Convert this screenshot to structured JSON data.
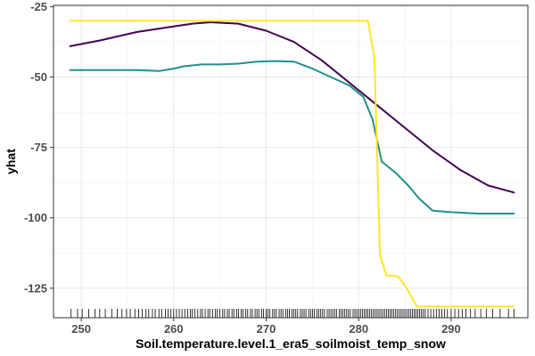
{
  "chart_data": {
    "type": "line",
    "xlabel": "Soil.temperature.level.1_era5_soilmoist_temp_snow",
    "ylabel": "yhat",
    "xlim": [
      247.0,
      298.3
    ],
    "ylim": [
      -135.5,
      -24.5
    ],
    "x_ticks": [
      250,
      260,
      270,
      280,
      290
    ],
    "y_ticks": [
      -125,
      -100,
      -75,
      -50,
      -25
    ],
    "x_tick_labels": [
      "250",
      "260",
      "270",
      "280",
      "290"
    ],
    "y_tick_labels": [
      "-125",
      "-100",
      "-75",
      "-50",
      "-25"
    ],
    "grid": true,
    "legend": "none",
    "series": [
      {
        "color": "#440154",
        "x": [
          248.8,
          252,
          256,
          259,
          262,
          264,
          267,
          270,
          273,
          276,
          279,
          282,
          285,
          288,
          291,
          294,
          296.8
        ],
        "y": [
          -39,
          -37,
          -34,
          -32.5,
          -31,
          -30.5,
          -31,
          -33.5,
          -37.5,
          -44,
          -52,
          -60,
          -68,
          -76,
          -83,
          -88.5,
          -91
        ]
      },
      {
        "color": "#21908c",
        "x": [
          248.8,
          252,
          256,
          258.5,
          260,
          261,
          263,
          265,
          267,
          269,
          271,
          273,
          275,
          277,
          279,
          280.5,
          281.5,
          282.5,
          284,
          285.5,
          286.5,
          288,
          290,
          293,
          296.8
        ],
        "y": [
          -47.5,
          -47.5,
          -47.5,
          -47.8,
          -47,
          -46.2,
          -45.5,
          -45.5,
          -45.2,
          -44.5,
          -44.3,
          -44.5,
          -47,
          -50,
          -53,
          -57,
          -65,
          -80,
          -84,
          -89,
          -93,
          -97.5,
          -98,
          -98.5,
          -98.5
        ]
      },
      {
        "color": "#fde725",
        "x": [
          248.8,
          252,
          256,
          260,
          264,
          268,
          272,
          276,
          280,
          281.0,
          281.7,
          282.3,
          283.0,
          283.7,
          284.3,
          285.0,
          285.7,
          286.3,
          287,
          290,
          293,
          296.8
        ],
        "y": [
          -30,
          -30,
          -30,
          -30,
          -30,
          -30,
          -30,
          -30,
          -30,
          -30,
          -43,
          -113,
          -120.5,
          -120.5,
          -121,
          -124,
          -128,
          -131.5,
          -131.5,
          -131.5,
          -131.5,
          -131.5
        ]
      }
    ],
    "rug_x": [
      248.9,
      249.6,
      250.1,
      250.8,
      251.5,
      252.0,
      252.6,
      253.3,
      253.9,
      254.4,
      254.9,
      255.3,
      255.8,
      256.2,
      256.6,
      257.0,
      257.3,
      257.7,
      258.0,
      258.4,
      258.7,
      259.1,
      259.4,
      259.7,
      260.0,
      260.3,
      260.6,
      260.9,
      261.2,
      261.5,
      261.8,
      262.0,
      262.3,
      262.6,
      262.9,
      263.1,
      263.4,
      263.7,
      263.9,
      264.2,
      264.5,
      264.7,
      265.0,
      265.3,
      265.5,
      265.8,
      266.0,
      266.3,
      266.5,
      266.8,
      267.0,
      267.3,
      267.5,
      267.8,
      268.0,
      268.3,
      268.5,
      268.8,
      269.0,
      269.2,
      269.5,
      269.7,
      270.0,
      270.2,
      270.4,
      270.7,
      270.9,
      271.1,
      271.4,
      271.6,
      271.8,
      272.1,
      272.3,
      272.5,
      272.8,
      273.0,
      273.2,
      273.4,
      273.7,
      273.9,
      274.1,
      274.3,
      274.6,
      274.8,
      275.0,
      275.2,
      275.5,
      275.7,
      275.9,
      276.1,
      276.3,
      276.6,
      276.8,
      277.0,
      277.2,
      277.4,
      277.6,
      277.9,
      278.1,
      278.3,
      278.5,
      278.7,
      278.9,
      279.1,
      279.4,
      279.6,
      279.8,
      280.0,
      280.2,
      280.4,
      280.6,
      280.8,
      281.0,
      281.2,
      281.4,
      281.6,
      281.8,
      282.0,
      282.2,
      282.4,
      282.6,
      282.8,
      283.0,
      283.2,
      283.4,
      283.6,
      283.8,
      284.0,
      284.2,
      284.4,
      284.6,
      284.8,
      285.0,
      285.2,
      285.4,
      285.6,
      285.8,
      286.0,
      286.2,
      286.4,
      286.6,
      286.8,
      287.0,
      287.2,
      287.5,
      287.8,
      288.1,
      288.4,
      288.7,
      289.0,
      289.3,
      289.6,
      290.0,
      290.4,
      290.8,
      291.2,
      291.6,
      292.1,
      292.6,
      293.2,
      293.8,
      294.5,
      295.3,
      296.2,
      296.8
    ]
  }
}
